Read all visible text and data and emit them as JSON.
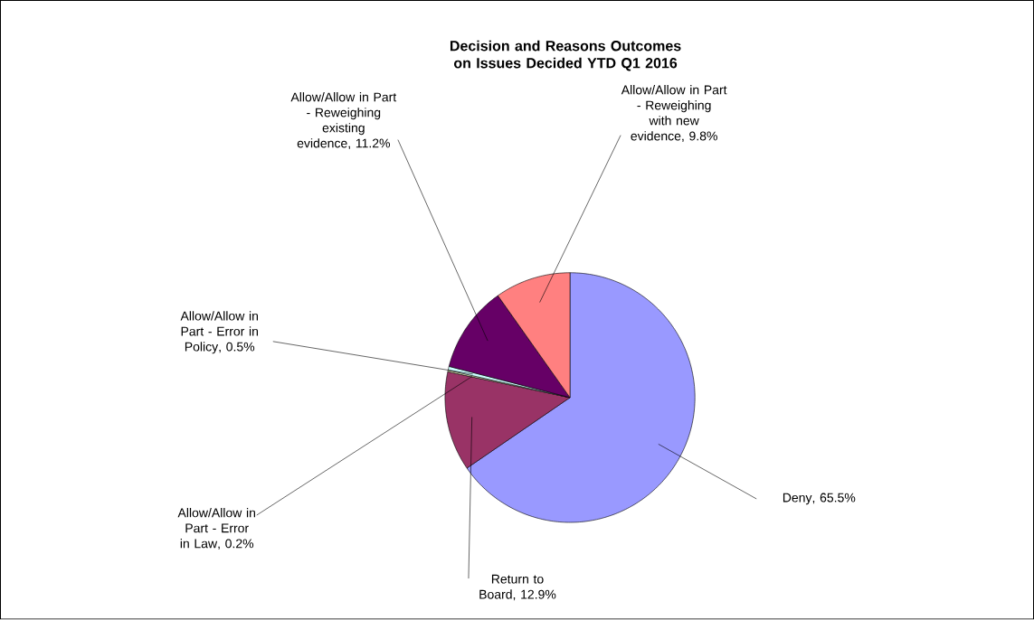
{
  "chart_data": {
    "type": "pie",
    "title": "Decision and Reasons Outcomes on Issues Decided YTD Q1 2016",
    "categories": [
      "Deny",
      "Return to Board",
      "Allow/Allow in Part - Error in Law",
      "Allow/Allow in Part - Error in Policy",
      "Allow/Allow in Part - Reweighing existing evidence",
      "Allow/Allow in Part - Reweighing with new evidence"
    ],
    "values": [
      65.5,
      12.9,
      0.2,
      0.5,
      11.2,
      9.8
    ],
    "value_labels": [
      ", 65.5%",
      ", 12.9%",
      ", 0.2%",
      ", 0.5%",
      ", 11.2%",
      ", 9.8%"
    ],
    "colors": [
      "#9999ff",
      "#993366",
      "#ffffcc",
      "#ccffff",
      "#660066",
      "#ff8080"
    ]
  }
}
